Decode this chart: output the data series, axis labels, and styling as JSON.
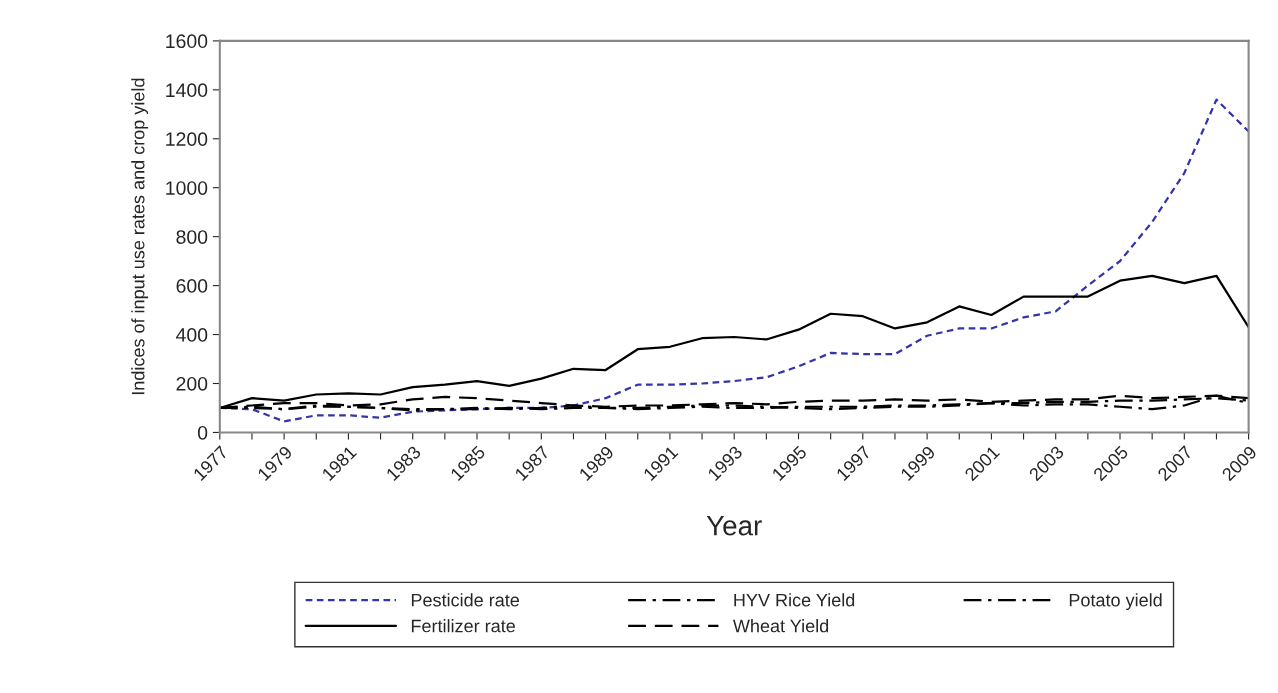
{
  "chart_data": {
    "type": "line",
    "xlabel": "Year",
    "ylabel": "Indices of input use rates and crop yield",
    "x": [
      1977,
      1978,
      1979,
      1980,
      1981,
      1982,
      1983,
      1984,
      1985,
      1986,
      1987,
      1988,
      1989,
      1990,
      1991,
      1992,
      1993,
      1994,
      1995,
      1996,
      1997,
      1998,
      1999,
      2000,
      2001,
      2002,
      2003,
      2004,
      2005,
      2006,
      2007,
      2008,
      2009
    ],
    "series": [
      {
        "name": "Pesticide rate",
        "color": "#3333aa",
        "line_style": "dotted",
        "values": [
          100,
          95,
          45,
          70,
          70,
          60,
          85,
          90,
          95,
          100,
          100,
          110,
          140,
          195,
          195,
          200,
          210,
          225,
          270,
          325,
          320,
          320,
          395,
          425,
          425,
          470,
          495,
          600,
          700,
          860,
          1060,
          1360,
          1230
        ]
      },
      {
        "name": "Fertilizer rate",
        "color": "#000000",
        "line_style": "solid",
        "values": [
          100,
          140,
          130,
          155,
          160,
          155,
          185,
          195,
          210,
          190,
          220,
          260,
          255,
          340,
          350,
          385,
          390,
          380,
          420,
          485,
          475,
          425,
          450,
          515,
          480,
          555,
          555,
          555,
          620,
          640,
          610,
          640,
          430
        ]
      },
      {
        "name": "HYV Rice Yield",
        "color": "#000000",
        "line_style": "dashdot",
        "values": [
          100,
          100,
          95,
          105,
          105,
          100,
          95,
          95,
          95,
          100,
          95,
          100,
          100,
          95,
          100,
          105,
          100,
          100,
          105,
          105,
          105,
          110,
          110,
          115,
          120,
          120,
          125,
          125,
          130,
          130,
          135,
          140,
          130
        ]
      },
      {
        "name": "Wheat Yield",
        "color": "#000000",
        "line_style": "dashed",
        "values": [
          100,
          110,
          120,
          120,
          110,
          115,
          135,
          145,
          140,
          130,
          120,
          110,
          105,
          110,
          110,
          115,
          120,
          115,
          125,
          130,
          130,
          135,
          130,
          135,
          125,
          130,
          135,
          135,
          150,
          140,
          145,
          150,
          140
        ]
      },
      {
        "name": "Potato yield",
        "color": "#000000",
        "line_style": "dashdot",
        "values": [
          100,
          105,
          95,
          110,
          105,
          100,
          90,
          95,
          100,
          95,
          100,
          110,
          100,
          100,
          105,
          110,
          110,
          105,
          100,
          95,
          100,
          105,
          105,
          110,
          120,
          110,
          115,
          115,
          105,
          95,
          110,
          150,
          120
        ]
      }
    ],
    "xlim": [
      1977,
      2009
    ],
    "xticks": [
      1977,
      {
        "value": 1978,
        "label": null
      },
      1979,
      {
        "value": 1980,
        "label": null
      },
      1981,
      {
        "value": 1982,
        "label": null
      },
      1983,
      {
        "value": 1984,
        "label": null
      },
      1985,
      {
        "value": 1986,
        "label": null
      },
      1987,
      {
        "value": 1988,
        "label": null
      },
      1989,
      {
        "value": 1990,
        "label": null
      },
      1991,
      {
        "value": 1992,
        "label": null
      },
      1993,
      {
        "value": 1994,
        "label": null
      },
      1995,
      {
        "value": 1996,
        "label": null
      },
      1997,
      {
        "value": 1998,
        "label": null
      },
      1999,
      {
        "value": 2000,
        "label": null
      },
      2001,
      {
        "value": 2002,
        "label": null
      },
      2003,
      {
        "value": 2004,
        "label": null
      },
      2005,
      {
        "value": 2006,
        "label": null
      },
      2007,
      {
        "value": 2008,
        "label": null
      },
      2009
    ],
    "ylim": [
      0,
      1600
    ],
    "yticks": [
      0,
      200,
      400,
      600,
      800,
      1000,
      1200,
      1400,
      1600
    ],
    "grid": false,
    "legend": "bottom",
    "marker": "none"
  }
}
